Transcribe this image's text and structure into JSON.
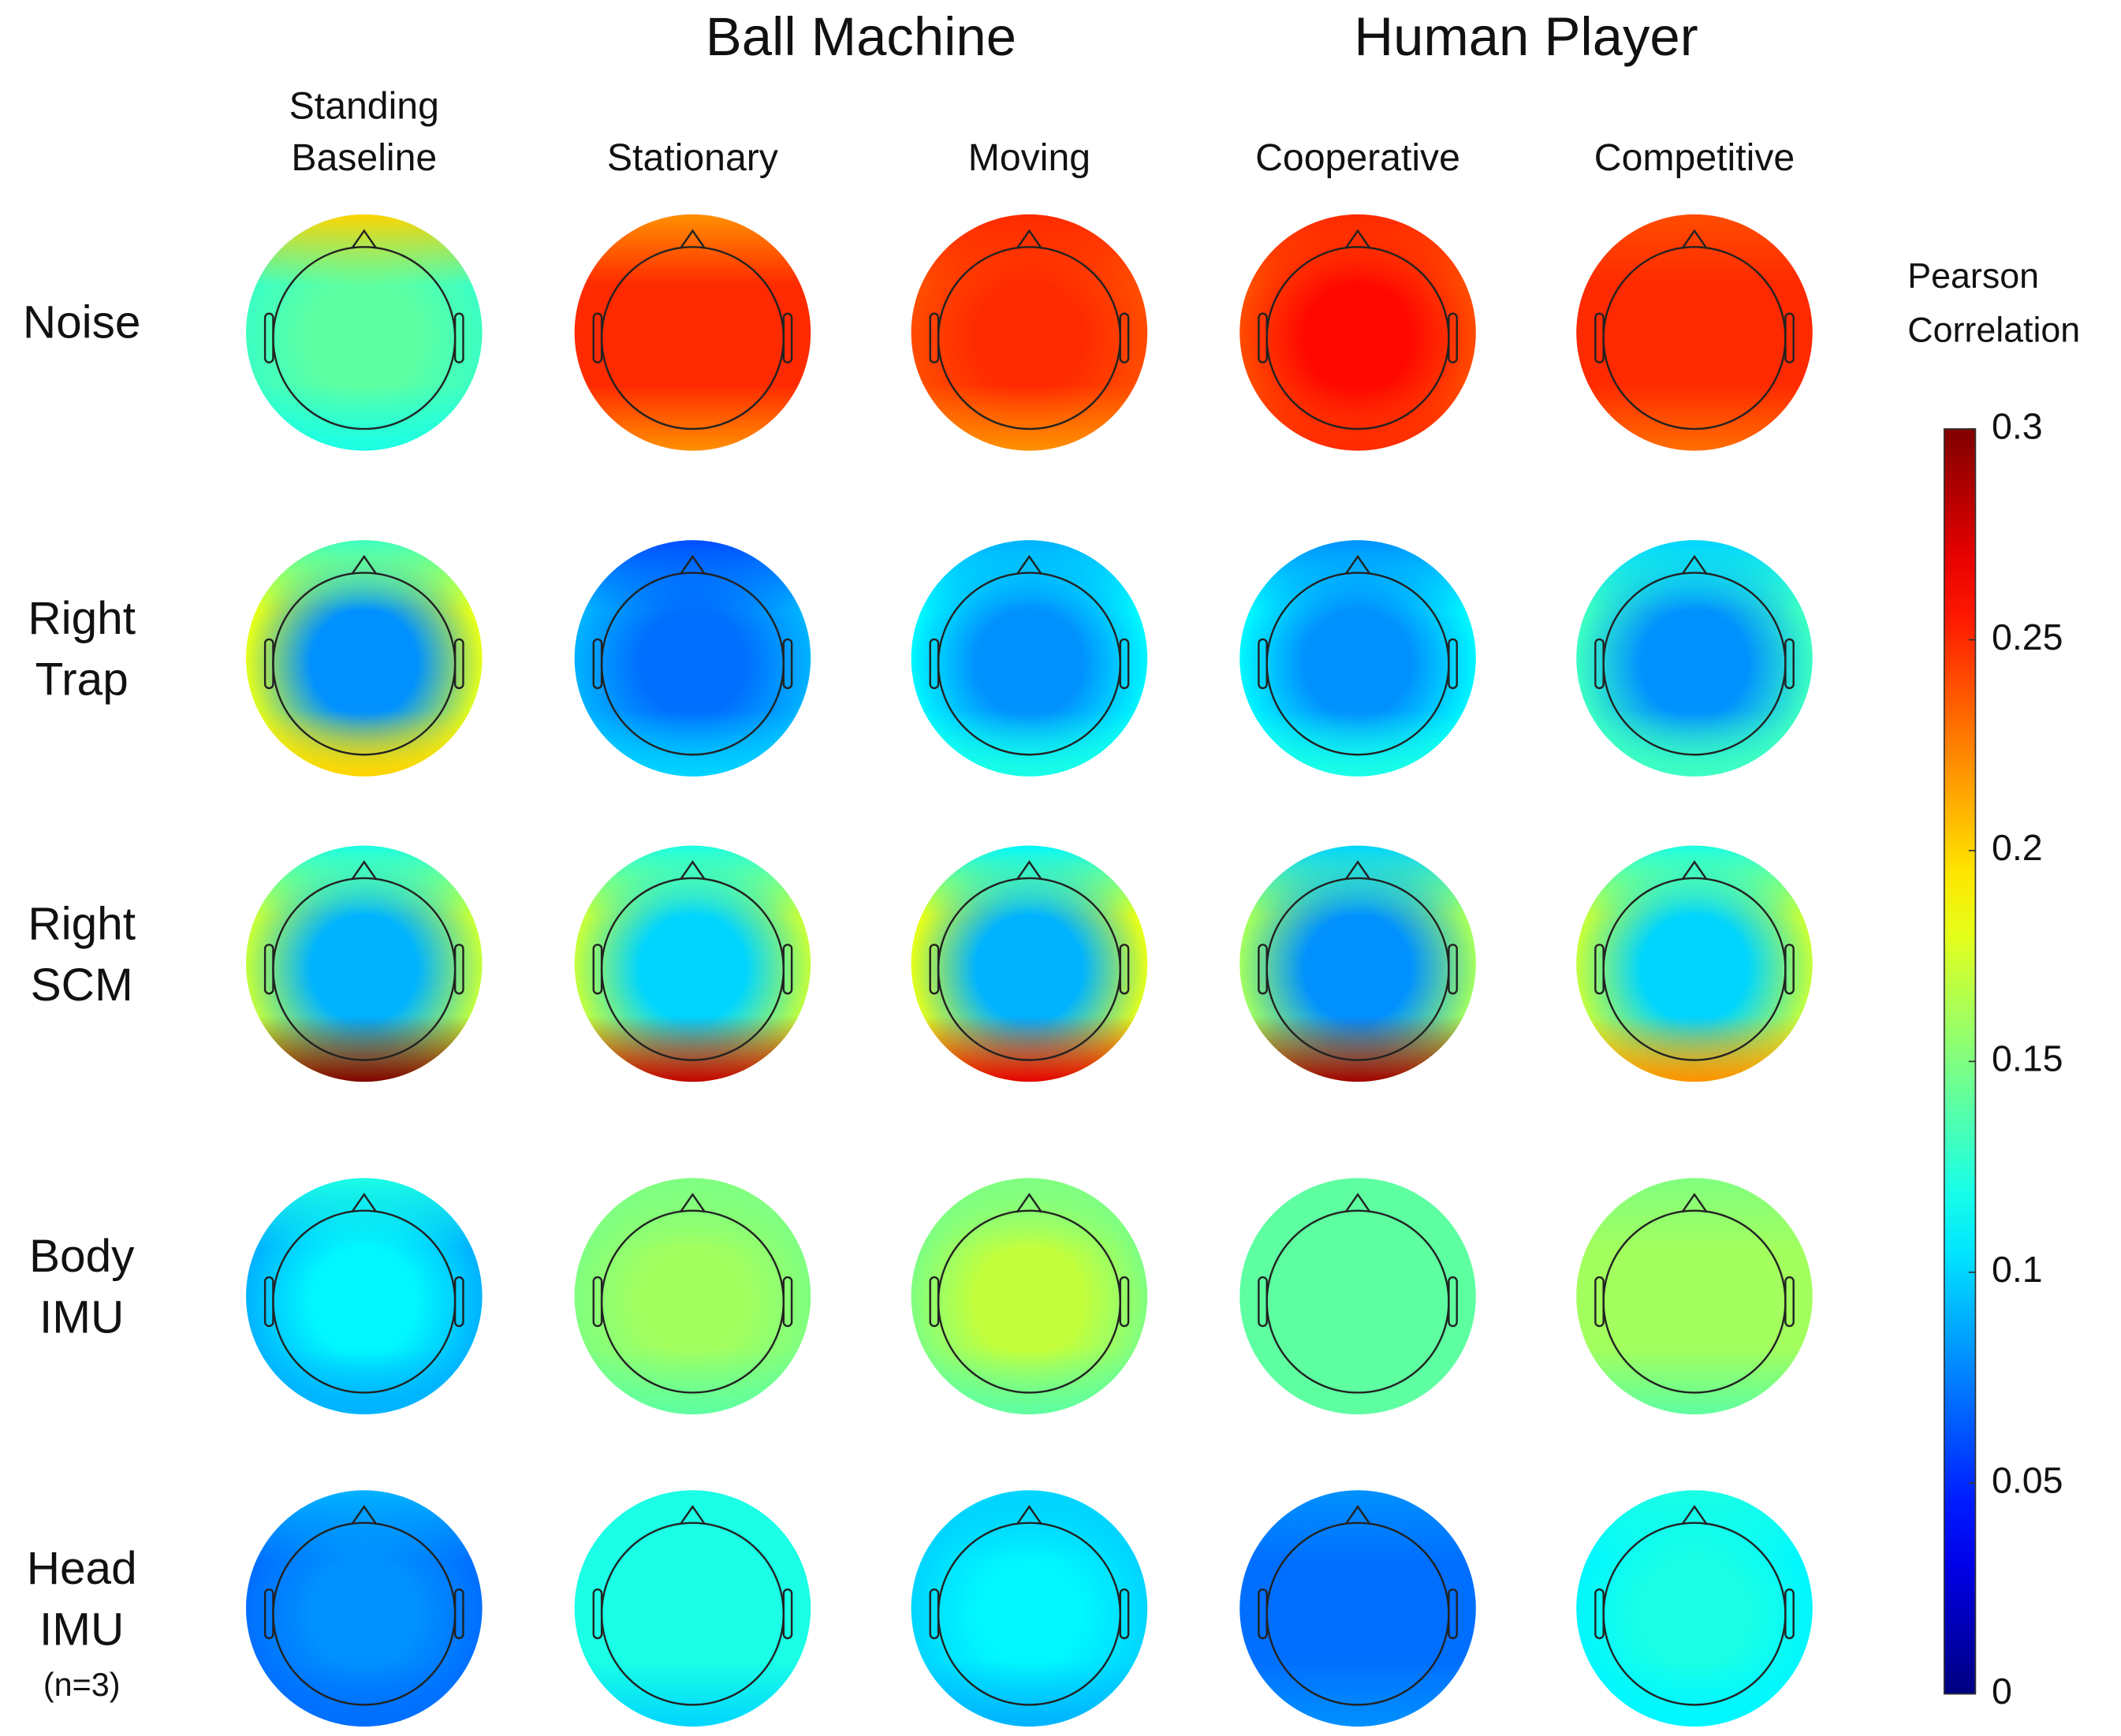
{
  "chart_data": {
    "type": "topoplot",
    "groups": [
      "Ball Machine",
      "Human Player"
    ],
    "columns": [
      [
        "Standing",
        "Baseline"
      ],
      [
        "Stationary"
      ],
      [
        "Moving"
      ],
      [
        "Cooperative"
      ],
      [
        "Competitive"
      ]
    ],
    "rows": [
      [
        "Noise"
      ],
      [
        "Right",
        "Trap"
      ],
      [
        "Right",
        "SCM"
      ],
      [
        "Body",
        "IMU"
      ],
      [
        "Head",
        "IMU",
        "(n=3)"
      ]
    ],
    "values": [
      [
        [
          0.14,
          0.2,
          0.12,
          0.13
        ],
        [
          0.25,
          0.22,
          0.22,
          0.25
        ],
        [
          0.25,
          0.25,
          0.22,
          0.24
        ],
        [
          0.26,
          0.25,
          0.25,
          0.24
        ],
        [
          0.25,
          0.24,
          0.23,
          0.25
        ]
      ],
      [
        [
          0.08,
          0.13,
          0.2,
          0.18
        ],
        [
          0.07,
          0.06,
          0.1,
          0.09
        ],
        [
          0.08,
          0.09,
          0.12,
          0.11
        ],
        [
          0.08,
          0.08,
          0.12,
          0.11
        ],
        [
          0.08,
          0.1,
          0.13,
          0.13
        ]
      ],
      [
        [
          0.09,
          0.12,
          0.3,
          0.17
        ],
        [
          0.1,
          0.12,
          0.28,
          0.17
        ],
        [
          0.09,
          0.11,
          0.27,
          0.18
        ],
        [
          0.08,
          0.1,
          0.29,
          0.16
        ],
        [
          0.1,
          0.12,
          0.22,
          0.17
        ]
      ],
      [
        [
          0.11,
          0.12,
          0.09,
          0.09
        ],
        [
          0.16,
          0.15,
          0.14,
          0.15
        ],
        [
          0.17,
          0.15,
          0.14,
          0.15
        ],
        [
          0.14,
          0.14,
          0.14,
          0.14
        ],
        [
          0.16,
          0.15,
          0.14,
          0.16
        ]
      ],
      [
        [
          0.08,
          0.09,
          0.07,
          0.07
        ],
        [
          0.12,
          0.12,
          0.1,
          0.12
        ],
        [
          0.11,
          0.1,
          0.09,
          0.1
        ],
        [
          0.07,
          0.08,
          0.08,
          0.07
        ],
        [
          0.12,
          0.12,
          0.11,
          0.11
        ]
      ]
    ],
    "colorbar": {
      "label": [
        "Pearson",
        "Correlation"
      ],
      "clim": [
        0,
        0.3
      ],
      "ticks": [
        0,
        0.05,
        0.1,
        0.15,
        0.2,
        0.25,
        0.3
      ],
      "colormap": "jet"
    }
  }
}
